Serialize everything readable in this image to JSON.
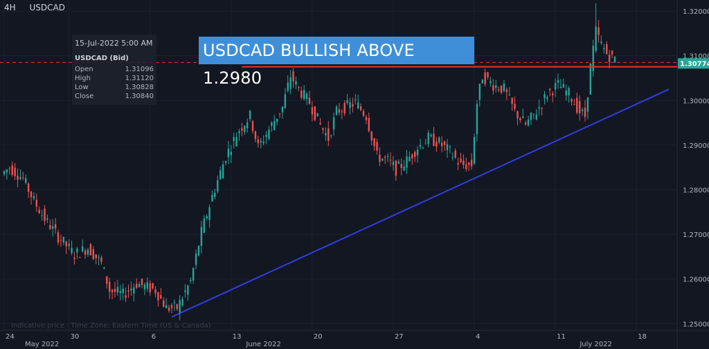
{
  "header": {
    "timeframe": "4H",
    "symbol": "USDCAD"
  },
  "banner": {
    "text": "USDCAD BULLISH ABOVE 1.2980"
  },
  "ohlc": {
    "datetime": "15-Jul-2022 5:00 AM",
    "symbol_label": "USDCAD (Bid)",
    "rows": [
      {
        "label": "Open",
        "value": "1.31096"
      },
      {
        "label": "High",
        "value": "1.31120"
      },
      {
        "label": "Low",
        "value": "1.30828"
      },
      {
        "label": "Close",
        "value": "1.30840"
      }
    ]
  },
  "footnote": "Indicative price · Time Zone: Eastern Time (US & Canada)",
  "colors": {
    "background": "#131722",
    "up": "#26a69a",
    "down": "#ef5350",
    "trendline": "#2f3fe0",
    "resistance": "#ff2a2a",
    "price_tag": "#26a69a",
    "banner": "#3f8fd8"
  },
  "chart_data": {
    "type": "candlestick",
    "title": "USDCAD BULLISH ABOVE 1.2980",
    "timeframe": "4H",
    "y_axis": {
      "ticks": [
        "1.32000",
        "1.31000",
        "1.30000",
        "1.29000",
        "1.28000",
        "1.27000",
        "1.26000",
        "1.25000"
      ],
      "range": [
        1.2485,
        1.3225
      ]
    },
    "x_axis": {
      "ticks": [
        {
          "label": "24",
          "index": 0
        },
        {
          "label": "30",
          "index": 24
        },
        {
          "label": "6",
          "index": 54
        },
        {
          "label": "13",
          "index": 84
        },
        {
          "label": "20",
          "index": 114
        },
        {
          "label": "27",
          "index": 144
        },
        {
          "label": "4",
          "index": 174
        },
        {
          "label": "11",
          "index": 204
        },
        {
          "label": "18",
          "index": 234
        }
      ],
      "month_labels": [
        {
          "label": "May 2022",
          "index": 14
        },
        {
          "label": "June 2022",
          "index": 96
        },
        {
          "label": "July 2022",
          "index": 219
        }
      ],
      "range_index": [
        0,
        246
      ]
    },
    "current_price": {
      "label": "1.30774",
      "value": 1.30774
    },
    "resistance_level": {
      "value": 1.3077,
      "from_index": 88,
      "to_index": 246
    },
    "trendline": {
      "from": {
        "index": 62,
        "price": 1.2515
      },
      "to": {
        "index": 246,
        "price": 1.3025
      }
    },
    "waypoints": [
      [
        0,
        1.2835
      ],
      [
        3,
        1.285
      ],
      [
        8,
        1.2825
      ],
      [
        12,
        1.2775
      ],
      [
        16,
        1.2735
      ],
      [
        21,
        1.2695
      ],
      [
        27,
        1.2655
      ],
      [
        32,
        1.267
      ],
      [
        37,
        1.2635
      ],
      [
        40,
        1.2575
      ],
      [
        45,
        1.2565
      ],
      [
        50,
        1.259
      ],
      [
        57,
        1.2575
      ],
      [
        61,
        1.2535
      ],
      [
        65,
        1.2535
      ],
      [
        70,
        1.2595
      ],
      [
        74,
        1.2705
      ],
      [
        78,
        1.2785
      ],
      [
        83,
        1.2875
      ],
      [
        88,
        1.2935
      ],
      [
        92,
        1.2965
      ],
      [
        95,
        1.2895
      ],
      [
        100,
        1.2945
      ],
      [
        104,
        1.2985
      ],
      [
        107,
        1.3055
      ],
      [
        110,
        1.3025
      ],
      [
        114,
        1.2995
      ],
      [
        118,
        1.2945
      ],
      [
        121,
        1.2915
      ],
      [
        124,
        1.2975
      ],
      [
        127,
        1.2985
      ],
      [
        131,
        1.2995
      ],
      [
        135,
        1.2965
      ],
      [
        139,
        1.2875
      ],
      [
        143,
        1.2865
      ],
      [
        146,
        1.2845
      ],
      [
        150,
        1.2865
      ],
      [
        154,
        1.2895
      ],
      [
        158,
        1.2915
      ],
      [
        162,
        1.2905
      ],
      [
        166,
        1.2885
      ],
      [
        170,
        1.2855
      ],
      [
        174,
        1.2855
      ],
      [
        176,
        1.2995
      ],
      [
        178,
        1.3055
      ],
      [
        182,
        1.3035
      ],
      [
        186,
        1.3025
      ],
      [
        190,
        1.2975
      ],
      [
        194,
        1.2945
      ],
      [
        198,
        1.2975
      ],
      [
        202,
        1.3015
      ],
      [
        206,
        1.3035
      ],
      [
        210,
        1.3015
      ],
      [
        214,
        1.2975
      ],
      [
        216,
        1.2965
      ],
      [
        218,
        1.3075
      ],
      [
        220,
        1.3155
      ],
      [
        222,
        1.3125
      ],
      [
        224,
        1.3105
      ],
      [
        226,
        1.3095
      ]
    ]
  }
}
